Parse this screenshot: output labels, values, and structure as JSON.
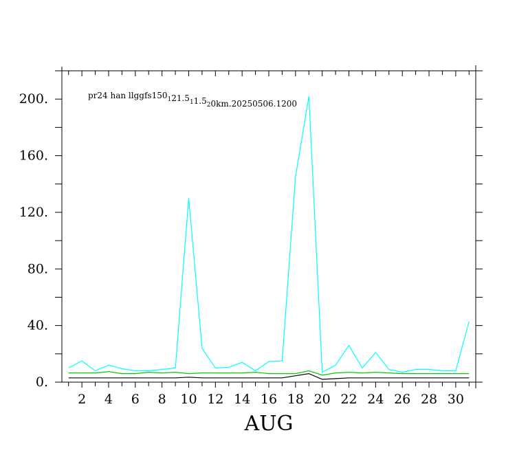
{
  "chart_data": {
    "type": "line",
    "title": "pr24 han llggfs150_1 21.5_1 1.5_2 0km.20250506.1200",
    "title_parts": [
      {
        "text": "pr24 han llggfs150",
        "sub": false
      },
      {
        "text": "1",
        "sub": true
      },
      {
        "text": "21.5",
        "sub": false
      },
      {
        "text": "1",
        "sub": true
      },
      {
        "text": "1.5",
        "sub": false
      },
      {
        "text": "2",
        "sub": true
      },
      {
        "text": "0km.20250506.1200",
        "sub": false
      }
    ],
    "xlabel": "AUG",
    "ylabel": "",
    "xlim": [
      0.5,
      31.5
    ],
    "ylim": [
      0,
      220
    ],
    "x_tick_labels": [
      "2",
      "4",
      "6",
      "8",
      "10",
      "12",
      "14",
      "16",
      "18",
      "20",
      "22",
      "24",
      "26",
      "28",
      "30"
    ],
    "y_tick_labels": [
      "0.",
      "40.",
      "80.",
      "120.",
      "160.",
      "200."
    ],
    "x": [
      1,
      2,
      3,
      4,
      5,
      6,
      7,
      8,
      9,
      10,
      11,
      12,
      13,
      14,
      15,
      16,
      17,
      18,
      19,
      20,
      21,
      22,
      23,
      24,
      25,
      26,
      27,
      28,
      29,
      30,
      31
    ],
    "series": [
      {
        "color": "#00ffff",
        "values": [
          10,
          15,
          8,
          12,
          9.5,
          8,
          8,
          9,
          10,
          130,
          24,
          10,
          10.5,
          14,
          8,
          14.5,
          15,
          145,
          202,
          7,
          12,
          26,
          10,
          21,
          9,
          7,
          9,
          9,
          8,
          8,
          43
        ]
      },
      {
        "color": "#00cc00",
        "values": [
          6.5,
          6.5,
          6.5,
          7.5,
          6,
          6,
          7,
          6.5,
          7,
          6,
          6.5,
          6.5,
          6.5,
          6.5,
          7,
          6,
          6,
          6,
          8,
          5,
          6.5,
          7,
          6.5,
          7,
          6.5,
          6,
          6,
          6,
          6,
          6,
          6
        ]
      },
      {
        "color": "#000000",
        "values": [
          3,
          3,
          3,
          3,
          3,
          3,
          3,
          3,
          3,
          3.5,
          3,
          3,
          3,
          3,
          3,
          3,
          3,
          4.5,
          6,
          2,
          2.5,
          3,
          3,
          3,
          3,
          3,
          3,
          3,
          3,
          3,
          3
        ]
      }
    ]
  }
}
